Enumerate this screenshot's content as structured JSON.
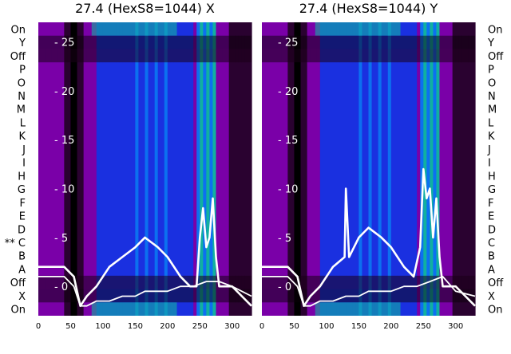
{
  "chart_data": [
    {
      "type": "heatmap",
      "title": "27.4 (HexS8=1044) X",
      "xlim": [
        0,
        330
      ],
      "xticks": [
        "0",
        "50",
        "100",
        "150",
        "200",
        "250",
        "300"
      ],
      "ylim": [
        -3,
        27
      ],
      "yticks": [
        "- 0",
        "- 5",
        "- 10",
        "- 15",
        "- 20",
        "- 25"
      ],
      "row_labels": [
        "On",
        "Y",
        "Off",
        "P",
        "O",
        "N",
        "M",
        "L",
        "K",
        "J",
        "I",
        "H",
        "G",
        "F",
        "E",
        "D",
        "** C",
        "B",
        "A",
        "Off",
        "X",
        "On"
      ],
      "colormap": [
        "#000000",
        "#2a0230",
        "#7a00a8",
        "#1a30e0",
        "#0c70f0",
        "#11b0a0"
      ],
      "series": [
        {
          "values_x": [
            0,
            40,
            55,
            65,
            75,
            90,
            110,
            130,
            150,
            165,
            175,
            185,
            200,
            220,
            235,
            245,
            250,
            255,
            260,
            265,
            270,
            275,
            280,
            290,
            300,
            315,
            330
          ],
          "values_y": [
            2,
            2,
            1,
            -2,
            -1,
            0,
            2,
            3,
            4,
            5,
            4.5,
            4,
            3,
            1,
            0,
            0,
            5,
            8,
            4,
            5,
            9,
            3,
            0,
            0,
            0,
            -1,
            -2
          ]
        },
        {
          "values_x": [
            0,
            40,
            55,
            65,
            75,
            90,
            110,
            130,
            150,
            165,
            180,
            200,
            220,
            240,
            260,
            280,
            300,
            330
          ],
          "values_y": [
            1,
            1,
            0,
            -2,
            -2,
            -1.5,
            -1.5,
            -1,
            -1,
            -0.5,
            -0.5,
            -0.5,
            0,
            0,
            0.5,
            0.5,
            0,
            -1
          ]
        }
      ]
    },
    {
      "type": "heatmap",
      "title": "27.4 (HexS8=1044) Y",
      "xlim": [
        0,
        330
      ],
      "xticks": [
        "0",
        "50",
        "100",
        "150",
        "200",
        "250",
        "300"
      ],
      "ylim": [
        -3,
        27
      ],
      "yticks": [
        "- 0",
        "- 5",
        "- 10",
        "- 15",
        "- 20",
        "- 25"
      ],
      "row_labels": [
        "On",
        "Y",
        "Off",
        "P",
        "O",
        "N",
        "M",
        "L",
        "K",
        "J",
        "I",
        "H",
        "G",
        "F",
        "E",
        "D",
        "C",
        "B",
        "A",
        "Off",
        "X",
        "On"
      ],
      "colormap": [
        "#000000",
        "#2a0230",
        "#7a00a8",
        "#1a30e0",
        "#0c70f0",
        "#11b0a0"
      ],
      "series": [
        {
          "values_x": [
            0,
            40,
            55,
            65,
            75,
            90,
            110,
            128,
            130,
            135,
            150,
            165,
            175,
            185,
            200,
            220,
            235,
            245,
            250,
            255,
            260,
            265,
            270,
            275,
            280,
            290,
            300,
            315,
            330
          ],
          "values_y": [
            2,
            2,
            1,
            -2,
            -1,
            0,
            2,
            3,
            10,
            3,
            5,
            6,
            5.5,
            5,
            4,
            2,
            1,
            4,
            12,
            9,
            10,
            5,
            9,
            3,
            0,
            0,
            0,
            -1,
            -2
          ]
        },
        {
          "values_x": [
            0,
            40,
            55,
            65,
            75,
            90,
            110,
            130,
            150,
            165,
            180,
            200,
            220,
            240,
            260,
            280,
            300,
            330
          ],
          "values_y": [
            1,
            1,
            0,
            -2,
            -2,
            -1.5,
            -1.5,
            -1,
            -1,
            -0.5,
            -0.5,
            -0.5,
            0,
            0,
            0.5,
            1,
            -0.5,
            -1
          ]
        }
      ]
    }
  ]
}
